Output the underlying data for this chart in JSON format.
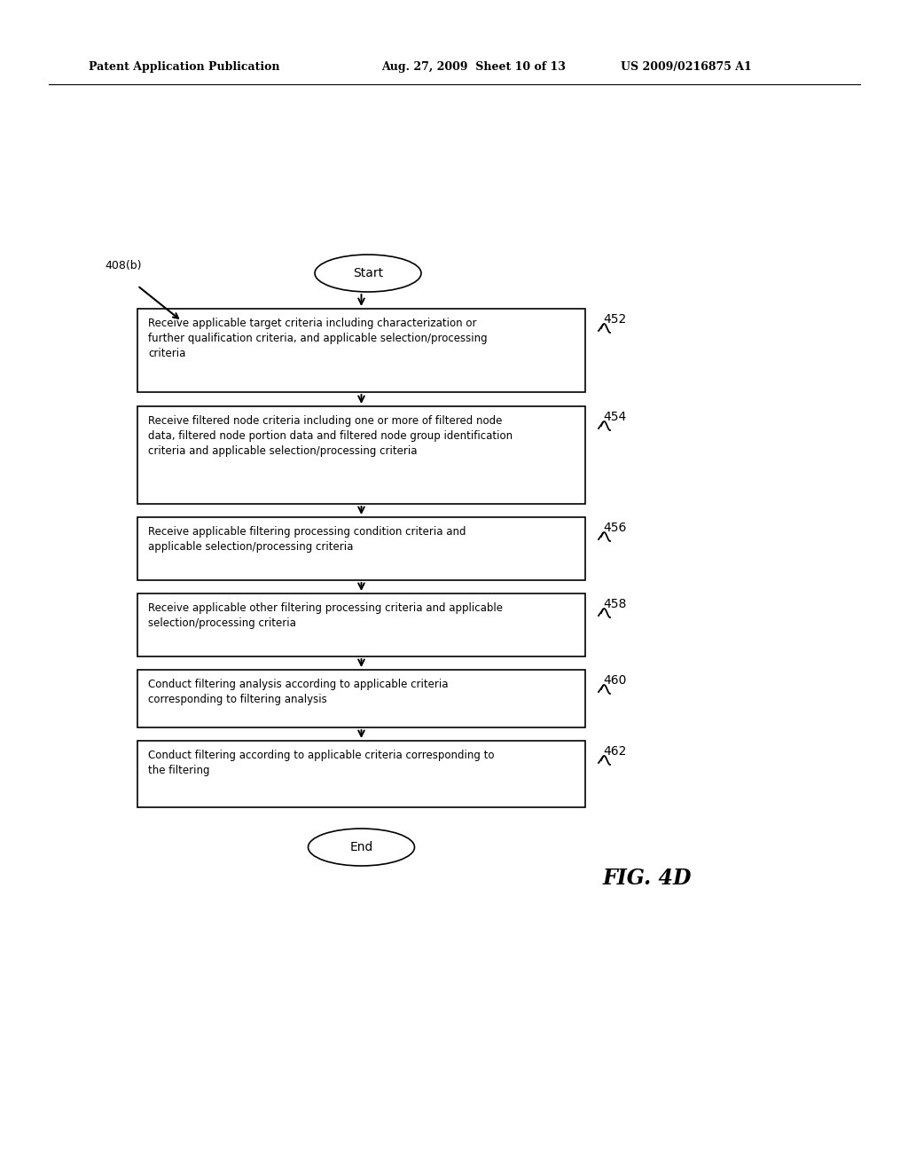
{
  "header_left": "Patent Application Publication",
  "header_mid": "Aug. 27, 2009  Sheet 10 of 13",
  "header_right": "US 2009/0216875 A1",
  "label_408b": "408(b)",
  "start_text": "Start",
  "end_text": "End",
  "fig_label": "FIG. 4D",
  "boxes": [
    {
      "label": "452",
      "text": "Receive applicable target criteria including characterization or\nfurther qualification criteria, and applicable selection/processing\ncriteria"
    },
    {
      "label": "454",
      "text": "Receive filtered node criteria including one or more of filtered node\ndata, filtered node portion data and filtered node group identification\ncriteria and applicable selection/processing criteria"
    },
    {
      "label": "456",
      "text": "Receive applicable filtering processing condition criteria and\napplicable selection/processing criteria"
    },
    {
      "label": "458",
      "text": "Receive applicable other filtering processing criteria and applicable\nselection/processing criteria"
    },
    {
      "label": "460",
      "text": "Conduct filtering analysis according to applicable criteria\ncorresponding to filtering analysis"
    },
    {
      "label": "462",
      "text": "Conduct filtering according to applicable criteria corresponding to\nthe filtering"
    }
  ],
  "bg_color": "#ffffff",
  "box_edge_color": "#000000",
  "text_color": "#000000"
}
